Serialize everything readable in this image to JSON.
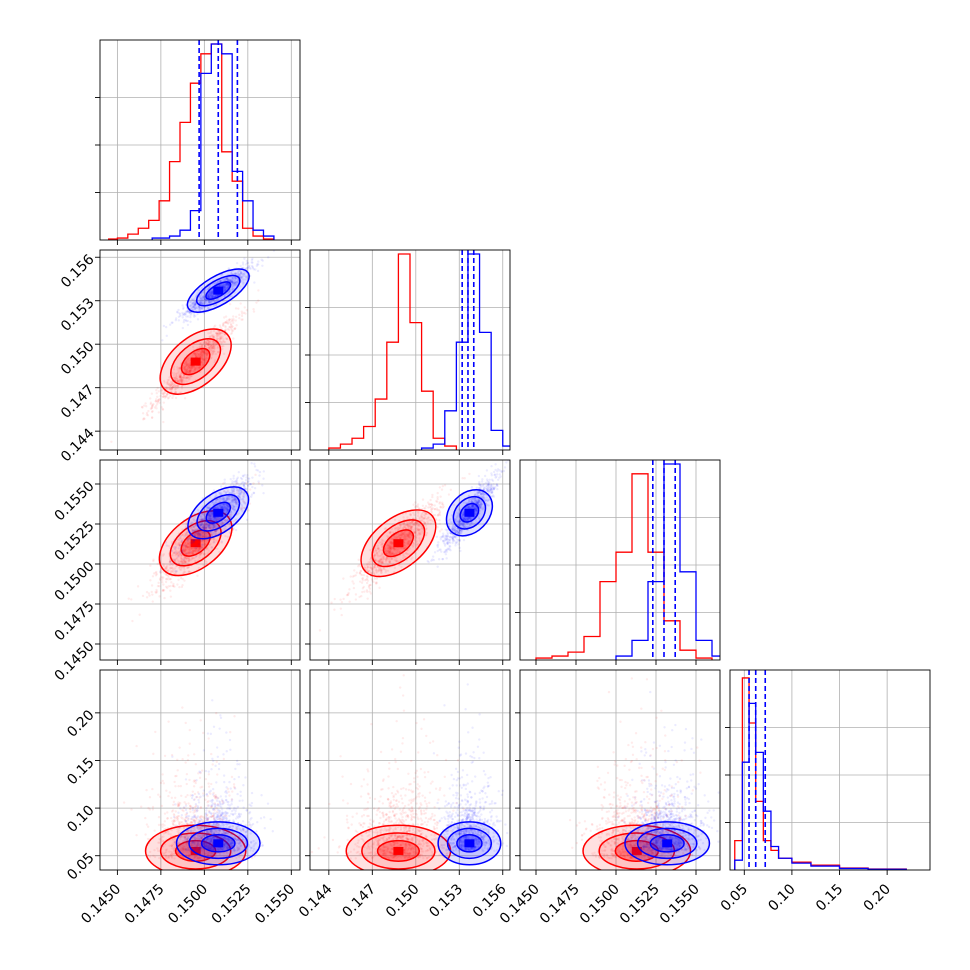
{
  "chart_data": {
    "type": "corner",
    "parameters": 4,
    "series": [
      {
        "color": "#ff0000",
        "medians": [
          0.1495,
          0.1488,
          0.1513,
          0.055
        ]
      },
      {
        "color": "#0000ff",
        "medians": [
          0.1508,
          0.1537,
          0.1532,
          0.063
        ]
      }
    ],
    "quantile_lines": {
      "color": "#0000ff",
      "values": [
        [
          0.1497,
          0.1508,
          0.1519
        ],
        [
          0.1532,
          0.1536,
          0.154
        ],
        [
          0.1523,
          0.153,
          0.1537
        ],
        [
          0.055,
          0.062,
          0.072
        ]
      ]
    },
    "axes": [
      {
        "range": [
          0.144,
          0.1555
        ],
        "ticks": [
          "0.1450",
          "0.1475",
          "0.1500",
          "0.1525",
          "0.1550"
        ],
        "tick_values": [
          0.145,
          0.1475,
          0.15,
          0.1525,
          0.155
        ]
      },
      {
        "range": [
          0.1427,
          0.1565
        ],
        "ticks": [
          "0.144",
          "0.147",
          "0.150",
          "0.153",
          "0.156"
        ],
        "tick_values": [
          0.144,
          0.147,
          0.15,
          0.153,
          0.156
        ]
      },
      {
        "range": [
          0.144,
          0.1565
        ],
        "ticks": [
          "0.1450",
          "0.1475",
          "0.1500",
          "0.1525",
          "0.1550"
        ],
        "tick_values": [
          0.145,
          0.1475,
          0.15,
          0.1525,
          0.155
        ]
      },
      {
        "range": [
          0.035,
          0.245
        ],
        "ticks": [
          "0.05",
          "0.10",
          "0.15",
          "0.20"
        ],
        "tick_values": [
          0.05,
          0.1,
          0.15,
          0.2
        ]
      }
    ],
    "histograms": [
      {
        "red": [
          [
            0.1445,
            0.145,
            0.005
          ],
          [
            0.145,
            0.1456,
            0.01
          ],
          [
            0.1456,
            0.1462,
            0.03
          ],
          [
            0.1462,
            0.1468,
            0.06
          ],
          [
            0.1468,
            0.1474,
            0.1
          ],
          [
            0.1474,
            0.148,
            0.2
          ],
          [
            0.148,
            0.1486,
            0.4
          ],
          [
            0.1486,
            0.1492,
            0.6
          ],
          [
            0.1492,
            0.1498,
            0.8
          ],
          [
            0.1498,
            0.1504,
            0.95
          ],
          [
            0.1504,
            0.151,
            1.0
          ],
          [
            0.151,
            0.1516,
            0.45
          ],
          [
            0.1516,
            0.1522,
            0.3
          ],
          [
            0.1522,
            0.1528,
            0.06
          ],
          [
            0.1528,
            0.1534,
            0.02
          ],
          [
            0.1534,
            0.154,
            0.005
          ]
        ],
        "blue": [
          [
            0.147,
            0.148,
            0.01
          ],
          [
            0.148,
            0.1486,
            0.02
          ],
          [
            0.1486,
            0.1492,
            0.05
          ],
          [
            0.1492,
            0.1498,
            0.15
          ],
          [
            0.1498,
            0.1504,
            0.85
          ],
          [
            0.1504,
            0.151,
            1.0
          ],
          [
            0.151,
            0.1516,
            0.95
          ],
          [
            0.1516,
            0.1522,
            0.35
          ],
          [
            0.1522,
            0.1528,
            0.2
          ],
          [
            0.1528,
            0.1534,
            0.05
          ],
          [
            0.1534,
            0.154,
            0.02
          ]
        ]
      },
      {
        "red": [
          [
            0.144,
            0.1448,
            0.01
          ],
          [
            0.1448,
            0.1456,
            0.03
          ],
          [
            0.1456,
            0.1464,
            0.06
          ],
          [
            0.1464,
            0.1472,
            0.12
          ],
          [
            0.1472,
            0.148,
            0.26
          ],
          [
            0.148,
            0.1488,
            0.55
          ],
          [
            0.1488,
            0.1496,
            1.0
          ],
          [
            0.1496,
            0.1504,
            0.65
          ],
          [
            0.1504,
            0.1512,
            0.3
          ],
          [
            0.1512,
            0.152,
            0.06
          ],
          [
            0.152,
            0.1528,
            0.02
          ]
        ],
        "blue": [
          [
            0.1504,
            0.1512,
            0.01
          ],
          [
            0.1512,
            0.152,
            0.03
          ],
          [
            0.152,
            0.1528,
            0.2
          ],
          [
            0.1528,
            0.1536,
            0.55
          ],
          [
            0.1536,
            0.1544,
            1.0
          ],
          [
            0.1544,
            0.1552,
            0.6
          ],
          [
            0.1552,
            0.156,
            0.1
          ],
          [
            0.156,
            0.1568,
            0.02
          ]
        ]
      },
      {
        "red": [
          [
            0.145,
            0.146,
            0.01
          ],
          [
            0.146,
            0.147,
            0.02
          ],
          [
            0.147,
            0.148,
            0.04
          ],
          [
            0.148,
            0.149,
            0.12
          ],
          [
            0.149,
            0.15,
            0.4
          ],
          [
            0.15,
            0.151,
            0.55
          ],
          [
            0.151,
            0.152,
            0.95
          ],
          [
            0.152,
            0.153,
            0.55
          ],
          [
            0.153,
            0.154,
            0.2
          ],
          [
            0.154,
            0.155,
            0.05
          ],
          [
            0.155,
            0.156,
            0.01
          ]
        ],
        "blue": [
          [
            0.15,
            0.151,
            0.02
          ],
          [
            0.151,
            0.152,
            0.1
          ],
          [
            0.152,
            0.153,
            0.4
          ],
          [
            0.153,
            0.154,
            1.0
          ],
          [
            0.154,
            0.155,
            0.45
          ],
          [
            0.155,
            0.156,
            0.1
          ],
          [
            0.156,
            0.157,
            0.02
          ]
        ]
      },
      {
        "red": [
          [
            0.04,
            0.048,
            0.15
          ],
          [
            0.048,
            0.055,
            0.98
          ],
          [
            0.055,
            0.062,
            0.75
          ],
          [
            0.062,
            0.07,
            0.35
          ],
          [
            0.07,
            0.078,
            0.15
          ],
          [
            0.078,
            0.086,
            0.1
          ],
          [
            0.086,
            0.1,
            0.06
          ],
          [
            0.1,
            0.12,
            0.04
          ],
          [
            0.12,
            0.15,
            0.025
          ],
          [
            0.15,
            0.18,
            0.01
          ],
          [
            0.18,
            0.22,
            0.005
          ]
        ],
        "blue": [
          [
            0.04,
            0.048,
            0.05
          ],
          [
            0.048,
            0.055,
            0.55
          ],
          [
            0.055,
            0.062,
            0.85
          ],
          [
            0.062,
            0.07,
            0.6
          ],
          [
            0.07,
            0.078,
            0.3
          ],
          [
            0.078,
            0.086,
            0.12
          ],
          [
            0.086,
            0.1,
            0.06
          ],
          [
            0.1,
            0.12,
            0.035
          ],
          [
            0.12,
            0.15,
            0.02
          ],
          [
            0.15,
            0.18,
            0.008
          ],
          [
            0.18,
            0.22,
            0.004
          ]
        ]
      }
    ],
    "correlations": {
      "1-0": {
        "red": 0.95,
        "blue": 0.9
      },
      "2-0": {
        "red": 0.85,
        "blue": 0.85
      },
      "2-1": {
        "red": 0.9,
        "blue": 0.9
      },
      "3-0": {
        "red": 0.0,
        "blue": -0.3
      },
      "3-1": {
        "red": 0.0,
        "blue": -0.3
      },
      "3-2": {
        "red": 0.0,
        "blue": -0.3
      }
    },
    "spreads": [
      {
        "red": 0.0012,
        "blue": 0.001
      },
      {
        "red": 0.0015,
        "blue": 0.0009
      },
      {
        "red": 0.0014,
        "blue": 0.0011
      },
      {
        "red": 0.03,
        "blue": 0.025
      }
    ]
  }
}
